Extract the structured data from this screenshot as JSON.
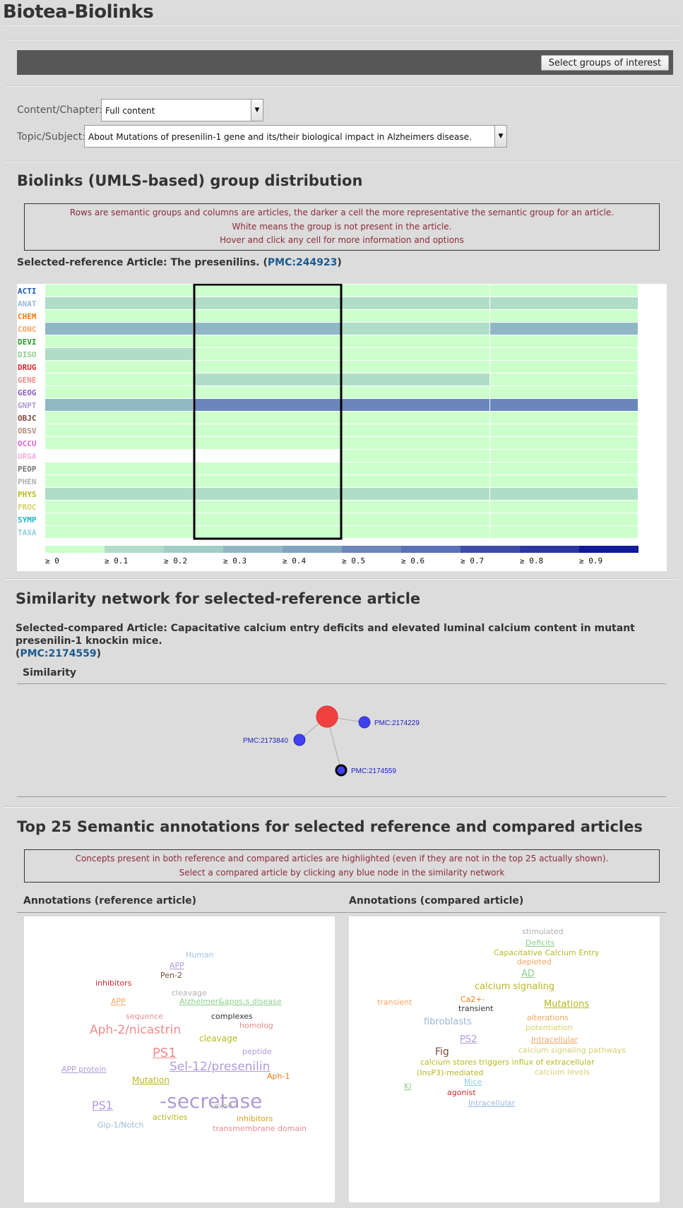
{
  "app": {
    "title": "Biotea-Biolinks"
  },
  "toolbar": {
    "select_groups_label": "Select groups of interest"
  },
  "filters": {
    "content_label": "Content/Chapter:",
    "content_value": "Full content",
    "topic_label": "Topic/Subject:",
    "topic_value": "About Mutations of presenilin-1 gene and its/their biological impact in Alzheimers disease."
  },
  "distribution": {
    "heading": "Biolinks (UMLS-based) group distribution",
    "info_lines": [
      "Rows are semantic groups and columns are articles, the darker a cell the more representative the semantic group for an article.",
      "White means the group is not present in the article.",
      "Hover and click any cell for more information and options"
    ],
    "selected_prefix": "Selected-reference Article: The presenilins. (",
    "selected_link": "PMC:244923",
    "selected_suffix": ")"
  },
  "chart_data": {
    "type": "heatmap",
    "rows": [
      {
        "label": "ACTI",
        "color": "#1f5aa8",
        "values": [
          0.05,
          0.05,
          0.05,
          0.05
        ]
      },
      {
        "label": "ANAT",
        "color": "#9ab8d8",
        "values": [
          0.1,
          0.1,
          0.1,
          0.1
        ]
      },
      {
        "label": "CHEM",
        "color": "#f27a12",
        "values": [
          0.05,
          0.05,
          0.05,
          0.05
        ]
      },
      {
        "label": "CONC",
        "color": "#f5a560",
        "values": [
          0.35,
          0.35,
          0.15,
          0.35
        ]
      },
      {
        "label": "DEVI",
        "color": "#2a9c2a",
        "values": [
          0.05,
          0.05,
          0.05,
          0.05
        ]
      },
      {
        "label": "DISO",
        "color": "#8cd08c",
        "values": [
          0.15,
          0.05,
          0.05,
          0.05
        ]
      },
      {
        "label": "DRUG",
        "color": "#d12a2a",
        "values": [
          0.05,
          0.05,
          0.05,
          0.05
        ]
      },
      {
        "label": "GENE",
        "color": "#f08c8c",
        "values": [
          0.05,
          0.15,
          0.15,
          0.05
        ]
      },
      {
        "label": "GEOG",
        "color": "#8a5cc0",
        "values": [
          0.05,
          0.05,
          0.05,
          0.05
        ]
      },
      {
        "label": "GNPT",
        "color": "#b09ad8",
        "values": [
          0.35,
          0.55,
          0.55,
          0.5
        ]
      },
      {
        "label": "OBJC",
        "color": "#7a4a3a",
        "values": [
          0.05,
          0.05,
          0.05,
          0.05
        ]
      },
      {
        "label": "OBSV",
        "color": "#b89080",
        "values": [
          0.05,
          0.05,
          0.05,
          0.05
        ]
      },
      {
        "label": "OCCU",
        "color": "#e06ad0",
        "values": [
          0.05,
          0.05,
          0.05,
          0.05
        ]
      },
      {
        "label": "ORGA",
        "color": "#f5b0e0",
        "values": [
          null,
          null,
          0.05,
          0.05
        ]
      },
      {
        "label": "PEOP",
        "color": "#777777",
        "values": [
          0.05,
          0.05,
          0.05,
          0.05
        ]
      },
      {
        "label": "PHEN",
        "color": "#b0b0b0",
        "values": [
          0.05,
          0.05,
          0.05,
          0.05
        ]
      },
      {
        "label": "PHYS",
        "color": "#b8b820",
        "values": [
          0.15,
          0.1,
          0.1,
          0.1
        ]
      },
      {
        "label": "PROC",
        "color": "#d8d070",
        "values": [
          0.05,
          0.05,
          0.05,
          0.05
        ]
      },
      {
        "label": "SYMP",
        "color": "#20b8c8",
        "values": [
          0.05,
          0.05,
          0.05,
          0.05
        ]
      },
      {
        "label": "TAXA",
        "color": "#90d0e0",
        "values": [
          0.05,
          0.05,
          0.05,
          0.05
        ]
      }
    ],
    "selected_column": 1,
    "legend": [
      "≥ 0",
      "≥ 0.1",
      "≥ 0.2",
      "≥ 0.3",
      "≥ 0.4",
      "≥ 0.5",
      "≥ 0.6",
      "≥ 0.7",
      "≥ 0.8",
      "≥ 0.9"
    ],
    "legend_colors": [
      "#ccffcc",
      "#b0ddc8",
      "#a0cec6",
      "#90b8c4",
      "#80a4c0",
      "#6a86bc",
      "#5a70b8",
      "#3a4ca8",
      "#2a36a0",
      "#101a98"
    ]
  },
  "network": {
    "heading": "Similarity network for selected-reference article",
    "compared_prefix": "Selected-compared Article: Capacitative calcium entry deficits and elevated luminal calcium content in mutant presenilin-1 knockin mice.",
    "compared_open": "(",
    "compared_link": "PMC:2174559",
    "compared_close": ")",
    "tab_label": "Similarity",
    "nodes": [
      {
        "label": "PMC:2174229"
      },
      {
        "label": "PMC:2173840"
      },
      {
        "label": "PMC:2174559"
      }
    ]
  },
  "annotations": {
    "heading": "Top 25 Semantic annotations for selected reference and compared articles",
    "info_lines": [
      "Concepts present in both reference and compared articles are highlighted (even if they are not in the top 25 actually shown).",
      "Select a compared article by clicking any blue node in the similarity network"
    ],
    "reference_title": "Annotations (reference article)",
    "compared_title": "Annotations (compared article)",
    "reference_words": [
      {
        "t": "Human",
        "c": "#9ac8e8",
        "s": 11
      },
      {
        "t": "APP",
        "c": "#b09ad8",
        "s": 11,
        "u": true
      },
      {
        "t": "Pen-2",
        "c": "#7a4a3a",
        "s": 11
      },
      {
        "t": "inhibitors",
        "c": "#d12a2a",
        "s": 11
      },
      {
        "t": "cleavage",
        "c": "#b0b0b0",
        "s": 11
      },
      {
        "t": "APP",
        "c": "#f5a560",
        "s": 11,
        "u": true
      },
      {
        "t": "Alzheimer&apos;s disease",
        "c": "#8cd08c",
        "s": 11,
        "u": true
      },
      {
        "t": "sequence",
        "c": "#f08c8c",
        "s": 11
      },
      {
        "t": "complexes",
        "c": "#333333",
        "s": 11
      },
      {
        "t": "homolog",
        "c": "#f08c8c",
        "s": 11
      },
      {
        "t": "Aph-2/nicastrin",
        "c": "#f08c8c",
        "s": 17
      },
      {
        "t": "cleavage",
        "c": "#b8b820",
        "s": 12
      },
      {
        "t": "PS1",
        "c": "#f08c8c",
        "s": 18,
        "u": true
      },
      {
        "t": "peptide",
        "c": "#b09ad8",
        "s": 11
      },
      {
        "t": "Sel-12/presenilin",
        "c": "#b09ad8",
        "s": 17,
        "u": true
      },
      {
        "t": "APP protein",
        "c": "#b09ad8",
        "s": 11,
        "u": true
      },
      {
        "t": "Mutation",
        "c": "#b8b820",
        "s": 12,
        "u": true
      },
      {
        "t": "Aph-1",
        "c": "#f27a12",
        "s": 11
      },
      {
        "t": "-secretase",
        "c": "#b09ad8",
        "s": 28
      },
      {
        "t": "PS1",
        "c": "#b09ad8",
        "s": 16,
        "u": true
      },
      {
        "t": "exon",
        "c": "#b0b0b0",
        "s": 11
      },
      {
        "t": "activities",
        "c": "#b8b820",
        "s": 11
      },
      {
        "t": "inhibitors",
        "c": "#d8a020",
        "s": 11
      },
      {
        "t": "Glp-1/Notch",
        "c": "#9ab8d8",
        "s": 11
      },
      {
        "t": "transmembrane domain",
        "c": "#f08c8c",
        "s": 11
      }
    ],
    "compared_words": [
      {
        "t": "stimulated",
        "c": "#b0b0b0",
        "s": 11
      },
      {
        "t": "Deficits",
        "c": "#8cd08c",
        "s": 11,
        "u": true
      },
      {
        "t": "Capacitative Calcium Entry",
        "c": "#b8b820",
        "s": 11
      },
      {
        "t": "depleted",
        "c": "#f5a560",
        "s": 11
      },
      {
        "t": "AD",
        "c": "#8cd08c",
        "s": 13,
        "u": true
      },
      {
        "t": "calcium signaling",
        "c": "#b8b820",
        "s": 13
      },
      {
        "t": "Ca2+-",
        "c": "#f27a12",
        "s": 11
      },
      {
        "t": "transient",
        "c": "#f5a560",
        "s": 11
      },
      {
        "t": "transient",
        "c": "#333333",
        "s": 11
      },
      {
        "t": "Mutations",
        "c": "#b8b820",
        "s": 13,
        "u": true
      },
      {
        "t": "alterations",
        "c": "#f5a560",
        "s": 11
      },
      {
        "t": "fibroblasts",
        "c": "#9ab8d8",
        "s": 13
      },
      {
        "t": "potentiation",
        "c": "#d8d070",
        "s": 11
      },
      {
        "t": "PS2",
        "c": "#b09ad8",
        "s": 13,
        "u": true
      },
      {
        "t": "Intracellular",
        "c": "#f5a560",
        "s": 11,
        "u": true
      },
      {
        "t": "Fig",
        "c": "#7a4a3a",
        "s": 14
      },
      {
        "t": "calcium signaling pathways",
        "c": "#d8d070",
        "s": 11
      },
      {
        "t": "calcium stores triggers influx of extracellular",
        "c": "#b8b820",
        "s": 11
      },
      {
        "t": "(InsP3)-mediated",
        "c": "#b8b820",
        "s": 11
      },
      {
        "t": "calcium levels",
        "c": "#d8d070",
        "s": 11
      },
      {
        "t": "KI",
        "c": "#8cd08c",
        "s": 11,
        "u": true
      },
      {
        "t": "Mice",
        "c": "#90d0e0",
        "s": 11,
        "u": true
      },
      {
        "t": "agonist",
        "c": "#d12a2a",
        "s": 11
      },
      {
        "t": "Intracellular",
        "c": "#9ab8d8",
        "s": 11,
        "u": true
      }
    ]
  }
}
